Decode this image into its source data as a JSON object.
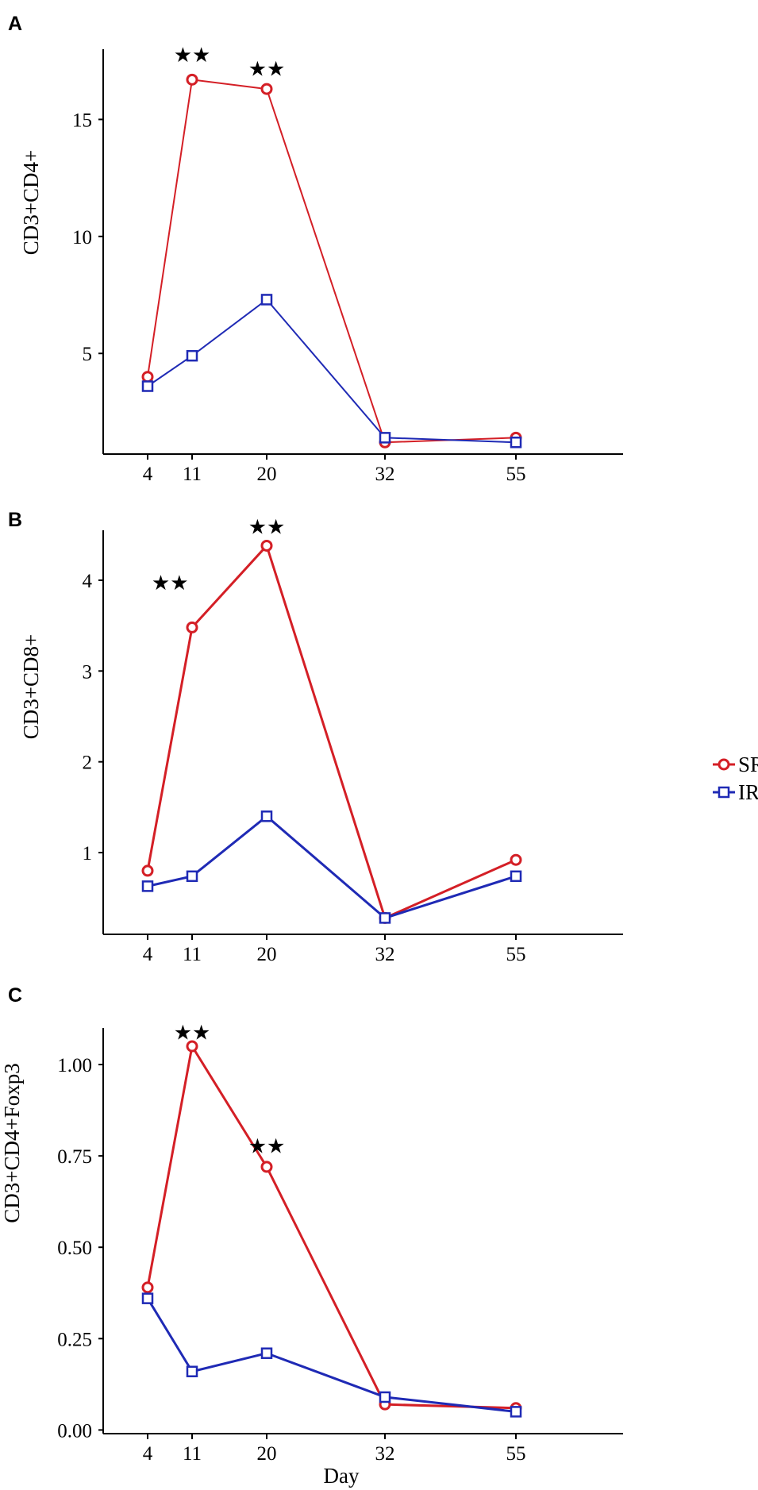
{
  "colors": {
    "SR": "#d41f26",
    "IR": "#1f2ab5"
  },
  "legend": [
    {
      "key": "SR",
      "label": "SR",
      "marker": "circle"
    },
    {
      "key": "IR",
      "label": "IR",
      "marker": "square"
    }
  ],
  "chart_data": [
    {
      "type": "line",
      "panel": "A",
      "title": "",
      "xlabel": "",
      "ylabel": "CD3+CD4+",
      "x": [
        4,
        11,
        20,
        32,
        55
      ],
      "xticks": [
        4,
        11,
        20,
        32,
        55
      ],
      "xlim": [
        0,
        70
      ],
      "yticks": [
        {
          "value": 5,
          "label": "5"
        },
        {
          "value": 10,
          "label": "10"
        },
        {
          "value": 15,
          "label": "15"
        }
      ],
      "ylim": [
        0.7,
        18.0
      ],
      "series": [
        {
          "name": "SR",
          "values": [
            4.0,
            16.7,
            16.3,
            1.2,
            1.4
          ]
        },
        {
          "name": "IR",
          "values": [
            3.6,
            4.9,
            7.3,
            1.4,
            1.2
          ]
        }
      ],
      "annotations": [
        {
          "x": 11,
          "y": 17.8,
          "text": "★★"
        },
        {
          "x": 20,
          "y": 17.2,
          "text": "★★"
        }
      ],
      "grid": false
    },
    {
      "type": "line",
      "panel": "B",
      "title": "",
      "xlabel": "",
      "ylabel": "CD3+CD8+",
      "x": [
        4,
        11,
        20,
        32,
        55
      ],
      "xticks": [
        4,
        11,
        20,
        32,
        55
      ],
      "xlim": [
        0,
        70
      ],
      "yticks": [
        {
          "value": 1,
          "label": "1"
        },
        {
          "value": 2,
          "label": "2"
        },
        {
          "value": 3,
          "label": "3"
        },
        {
          "value": 4,
          "label": "4"
        }
      ],
      "ylim": [
        0.1,
        4.55
      ],
      "series": [
        {
          "name": "SR",
          "values": [
            0.8,
            3.48,
            4.38,
            0.28,
            0.92
          ]
        },
        {
          "name": "IR",
          "values": [
            0.63,
            0.74,
            1.4,
            0.28,
            0.74
          ]
        }
      ],
      "annotations": [
        {
          "x": 9,
          "y": 3.98,
          "text": "★★"
        },
        {
          "x": 20,
          "y": 4.6,
          "text": "★★"
        }
      ],
      "grid": false
    },
    {
      "type": "line",
      "panel": "C",
      "title": "",
      "xlabel": "Day",
      "ylabel": "CD3+CD4+Foxp3",
      "x": [
        4,
        11,
        20,
        32,
        55
      ],
      "xticks": [
        4,
        11,
        20,
        32,
        55
      ],
      "xlim": [
        0,
        70
      ],
      "yticks": [
        {
          "value": 0.0,
          "label": "0.00"
        },
        {
          "value": 0.25,
          "label": "0.25"
        },
        {
          "value": 0.5,
          "label": "0.50"
        },
        {
          "value": 0.75,
          "label": "0.75"
        },
        {
          "value": 1.0,
          "label": "1.00"
        }
      ],
      "ylim": [
        -0.01,
        1.1
      ],
      "series": [
        {
          "name": "SR",
          "values": [
            0.39,
            1.05,
            0.72,
            0.07,
            0.06
          ]
        },
        {
          "name": "IR",
          "values": [
            0.36,
            0.16,
            0.21,
            0.09,
            0.05
          ]
        }
      ],
      "annotations": [
        {
          "x": 11,
          "y": 1.09,
          "text": "★★"
        },
        {
          "x": 20,
          "y": 0.78,
          "text": "★★"
        }
      ],
      "grid": false
    }
  ]
}
